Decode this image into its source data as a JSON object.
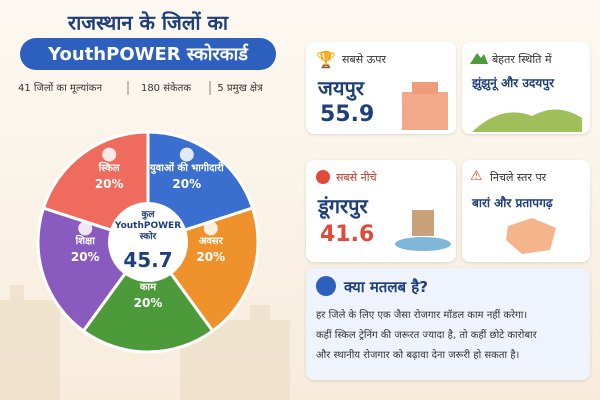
{
  "header": {
    "title_line1": "राजस्थान के जिलों का",
    "title_line2": "YouthPOWER स्कोरकार्ड",
    "stats": [
      "41 जिलों का मूल्यांकन",
      "180 संकेतक",
      "5 प्रमुख क्षेत्र"
    ]
  },
  "chart_data": {
    "type": "pie",
    "categories": [
      "युवाओं की भागीदारी",
      "अवसर",
      "काम",
      "शिक्षा",
      "स्किल"
    ],
    "values": [
      20,
      20,
      20,
      20,
      20
    ],
    "value_labels": [
      "20%",
      "20%",
      "20%",
      "20%",
      "20%"
    ],
    "colors": [
      "#3a6fd0",
      "#f0922b",
      "#4d9a3a",
      "#8a5bbf",
      "#ee6b5e"
    ],
    "center_label": "कुल YouthPOWER स्कोर",
    "center_value": "45.7"
  },
  "cards": [
    {
      "label": "सबसे ऊपर",
      "district": "जयपुर",
      "score": "55.9"
    },
    {
      "label": "बेहतर स्थिति में",
      "district": "झुंझुनूं और उदयपुर"
    },
    {
      "label": "सबसे नीचे",
      "district": "डूंगरपुर",
      "score": "41.6"
    },
    {
      "label": "निचले स्तर पर",
      "district": "बारां और प्रतापगढ़"
    }
  ],
  "note": {
    "title": "क्या मतलब है?",
    "lines": [
      "हर जिले के लिए एक जैसा रोजगार मॉडल काम नहीं करेगा।",
      "कहीं स्किल ट्रेनिंग की जरूरत ज्यादा है, तो कहीं छोटे कारोबार",
      "और स्थानीय रोजगार को बढ़ावा देना जरूरी हो सकता है।"
    ]
  }
}
